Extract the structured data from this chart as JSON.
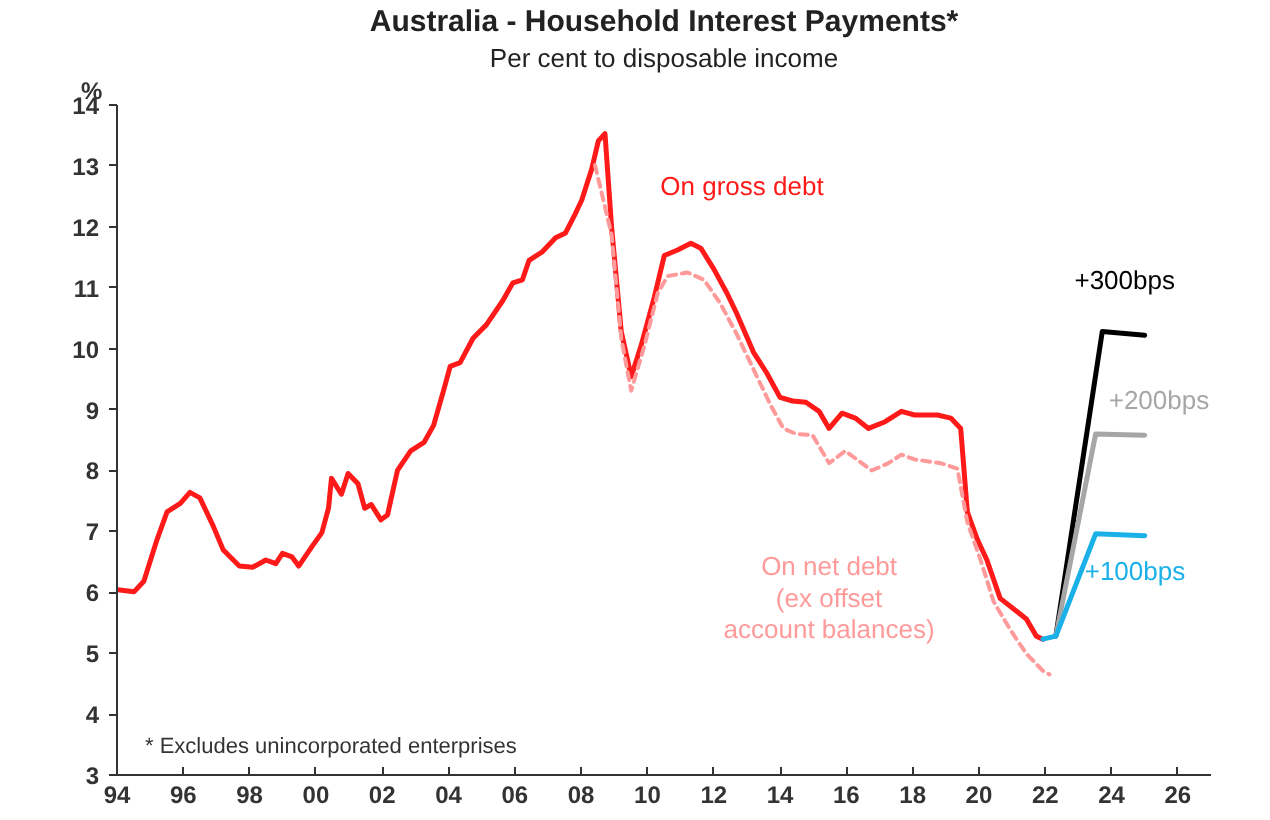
{
  "chart_data": {
    "type": "line",
    "title": "Australia - Household Interest Payments*",
    "subtitle": "Per cent to disposable income",
    "ylabel": "%",
    "annotations": [
      "* Excludes unincorporated enterprises"
    ],
    "xlim": [
      1994,
      2027
    ],
    "ylim": [
      3,
      14
    ],
    "xticks": [
      {
        "value": 1994,
        "label": "94"
      },
      {
        "value": 1996,
        "label": "96"
      },
      {
        "value": 1998,
        "label": "98"
      },
      {
        "value": 2000,
        "label": "00"
      },
      {
        "value": 2002,
        "label": "02"
      },
      {
        "value": 2004,
        "label": "04"
      },
      {
        "value": 2006,
        "label": "06"
      },
      {
        "value": 2008,
        "label": "08"
      },
      {
        "value": 2010,
        "label": "10"
      },
      {
        "value": 2012,
        "label": "12"
      },
      {
        "value": 2014,
        "label": "14"
      },
      {
        "value": 2016,
        "label": "16"
      },
      {
        "value": 2018,
        "label": "18"
      },
      {
        "value": 2020,
        "label": "20"
      },
      {
        "value": 2022,
        "label": "22"
      },
      {
        "value": 2024,
        "label": "24"
      },
      {
        "value": 2026,
        "label": "26"
      }
    ],
    "yticks": [
      3,
      4,
      5,
      6,
      7,
      8,
      9,
      10,
      11,
      12,
      13,
      14
    ],
    "series": [
      {
        "name": "On gross debt",
        "color": "#ff1a1a",
        "line_style": "solid",
        "x": [
          1994.02,
          1994.52,
          1994.81,
          1995.21,
          1995.51,
          1995.91,
          1996.2,
          1996.5,
          1996.9,
          1997.2,
          1997.69,
          1998.09,
          1998.49,
          1998.79,
          1998.99,
          1999.28,
          1999.48,
          1999.88,
          2000.18,
          2000.38,
          2000.47,
          2000.77,
          2000.97,
          2001.27,
          2001.47,
          2001.67,
          2001.96,
          2002.16,
          2002.46,
          2002.86,
          2003.26,
          2003.55,
          2003.85,
          2004.05,
          2004.35,
          2004.74,
          2005.14,
          2005.64,
          2005.94,
          2006.23,
          2006.43,
          2006.83,
          2007.23,
          2007.53,
          2007.82,
          2008.02,
          2008.32,
          2008.52,
          2008.72,
          2008.92,
          2009.21,
          2009.51,
          2009.81,
          2010.21,
          2010.51,
          2010.91,
          2011.31,
          2011.61,
          2012.0,
          2012.4,
          2012.7,
          2013.2,
          2013.6,
          2014.0,
          2014.38,
          2014.78,
          2015.18,
          2015.48,
          2015.87,
          2016.27,
          2016.67,
          2017.17,
          2017.66,
          2018.06,
          2018.75,
          2019.15,
          2019.45,
          2019.65,
          2019.95,
          2020.24,
          2020.64,
          2021.04,
          2021.43,
          2021.73,
          2021.93
        ],
        "values": [
          6.04,
          6.01,
          6.18,
          6.87,
          7.32,
          7.46,
          7.64,
          7.55,
          7.09,
          6.7,
          6.43,
          6.41,
          6.53,
          6.47,
          6.64,
          6.58,
          6.43,
          6.75,
          6.98,
          7.38,
          7.87,
          7.61,
          7.95,
          7.78,
          7.38,
          7.44,
          7.19,
          7.27,
          8.0,
          8.32,
          8.46,
          8.74,
          9.31,
          9.71,
          9.77,
          10.17,
          10.39,
          10.79,
          11.08,
          11.13,
          11.45,
          11.59,
          11.82,
          11.9,
          12.21,
          12.44,
          12.95,
          13.41,
          13.53,
          11.99,
          10.28,
          9.54,
          10.05,
          10.85,
          11.53,
          11.62,
          11.73,
          11.65,
          11.31,
          10.91,
          10.57,
          9.94,
          9.6,
          9.2,
          9.14,
          9.12,
          8.97,
          8.69,
          8.94,
          8.86,
          8.69,
          8.8,
          8.97,
          8.91,
          8.91,
          8.86,
          8.69,
          7.32,
          6.87,
          6.53,
          5.9,
          5.73,
          5.56,
          5.28,
          5.23
        ]
      },
      {
        "name": "On net debt\n(ex offset\naccount balances)",
        "color": "#ff9a9a",
        "line_style": "dashed",
        "x": [
          2008.42,
          2008.92,
          2009.21,
          2009.51,
          2009.91,
          2010.31,
          2010.61,
          2011.21,
          2011.71,
          2012.2,
          2012.7,
          2013.2,
          2013.7,
          2014.1,
          2014.48,
          2014.98,
          2015.48,
          2015.97,
          2016.77,
          2017.27,
          2017.66,
          2018.06,
          2018.85,
          2019.35,
          2019.65,
          2020.05,
          2020.44,
          2020.94,
          2021.43,
          2021.93,
          2022.13
        ],
        "values": [
          13.01,
          11.87,
          10.17,
          9.31,
          10.05,
          10.91,
          11.19,
          11.25,
          11.13,
          10.74,
          10.23,
          9.66,
          9.09,
          8.69,
          8.6,
          8.58,
          8.12,
          8.32,
          8.0,
          8.12,
          8.26,
          8.18,
          8.12,
          8.03,
          7.15,
          6.53,
          5.85,
          5.39,
          4.99,
          4.71,
          4.65
        ]
      },
      {
        "name": "+300bps",
        "color": "#000000",
        "line_style": "solid",
        "x": [
          2022.32,
          2023.72,
          2025.0
        ],
        "values": [
          5.28,
          10.28,
          10.22
        ]
      },
      {
        "name": "+200bps",
        "color": "#a6a6a6",
        "line_style": "solid",
        "x": [
          2022.32,
          2023.52,
          2025.0
        ],
        "values": [
          5.28,
          8.6,
          8.58
        ]
      },
      {
        "name": "+100bps",
        "color": "#1ab0e8",
        "line_style": "solid",
        "x": [
          2021.93,
          2022.32,
          2023.52,
          2025.0
        ],
        "values": [
          5.23,
          5.28,
          6.96,
          6.93
        ]
      }
    ]
  }
}
